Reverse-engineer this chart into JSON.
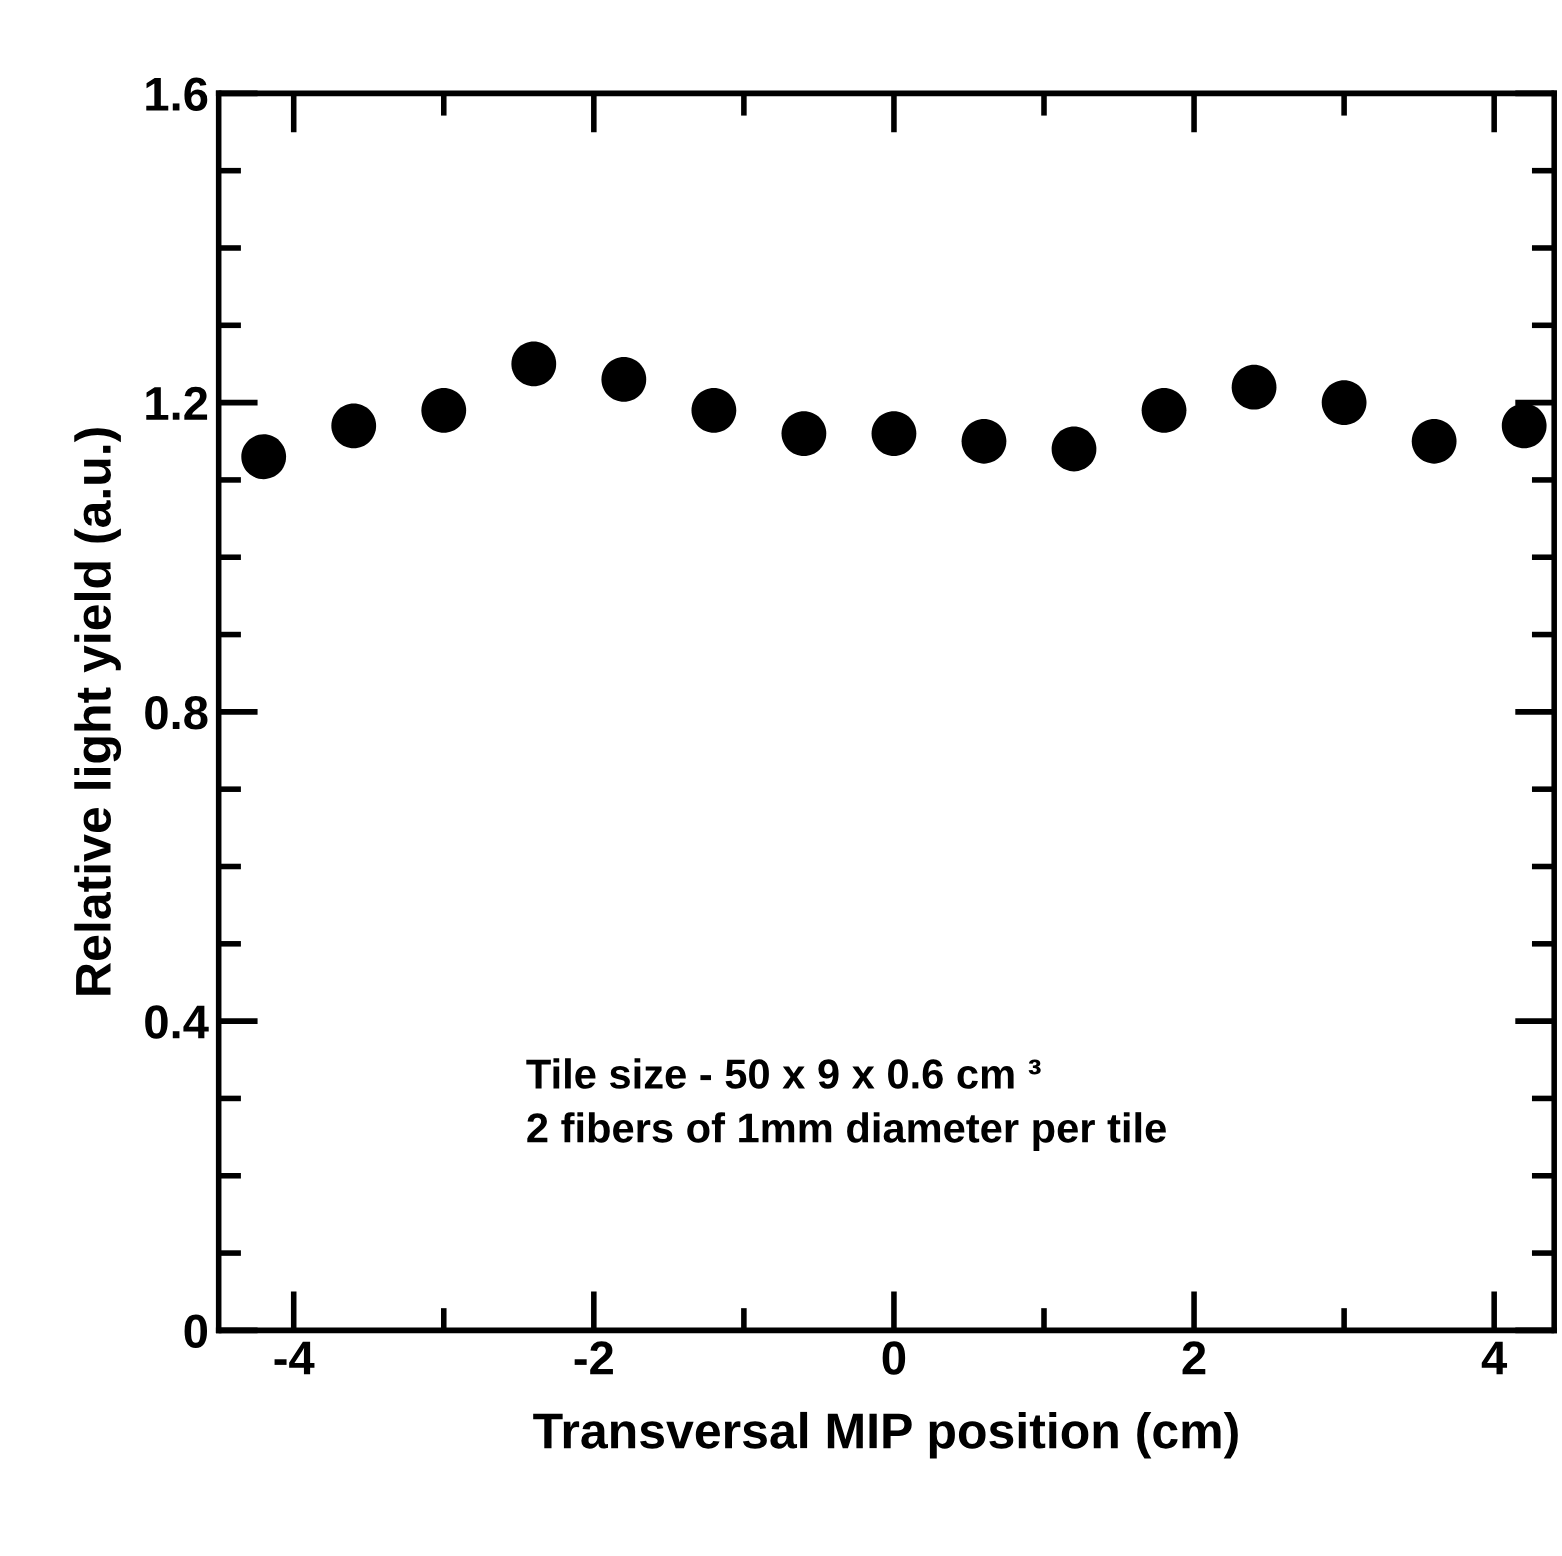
{
  "chart_data": {
    "type": "scatter",
    "xlabel": "Transversal MIP position (cm)",
    "ylabel": "Relative light yield (a.u.)",
    "x": [
      -4.2,
      -3.6,
      -3.0,
      -2.4,
      -1.8,
      -1.2,
      -0.6,
      0,
      0.6,
      1.2,
      1.8,
      2.4,
      3.0,
      3.6,
      4.2
    ],
    "values": [
      1.13,
      1.17,
      1.19,
      1.25,
      1.23,
      1.19,
      1.16,
      1.16,
      1.15,
      1.14,
      1.19,
      1.22,
      1.2,
      1.15,
      1.17
    ],
    "color": "#000000",
    "marker": "circle",
    "xlim": [
      -4.5,
      4.4
    ],
    "xticks": [
      -4,
      -2,
      0,
      2,
      4
    ],
    "ylim": [
      0,
      1.6
    ],
    "yticks": [
      0,
      0.4,
      0.8,
      1.2,
      1.6
    ],
    "grid": false,
    "legend": false,
    "annotations": [
      "Tile size - 50 x 9 x 0.6 cm ³\n2 fibers of 1mm diameter per tile"
    ]
  }
}
